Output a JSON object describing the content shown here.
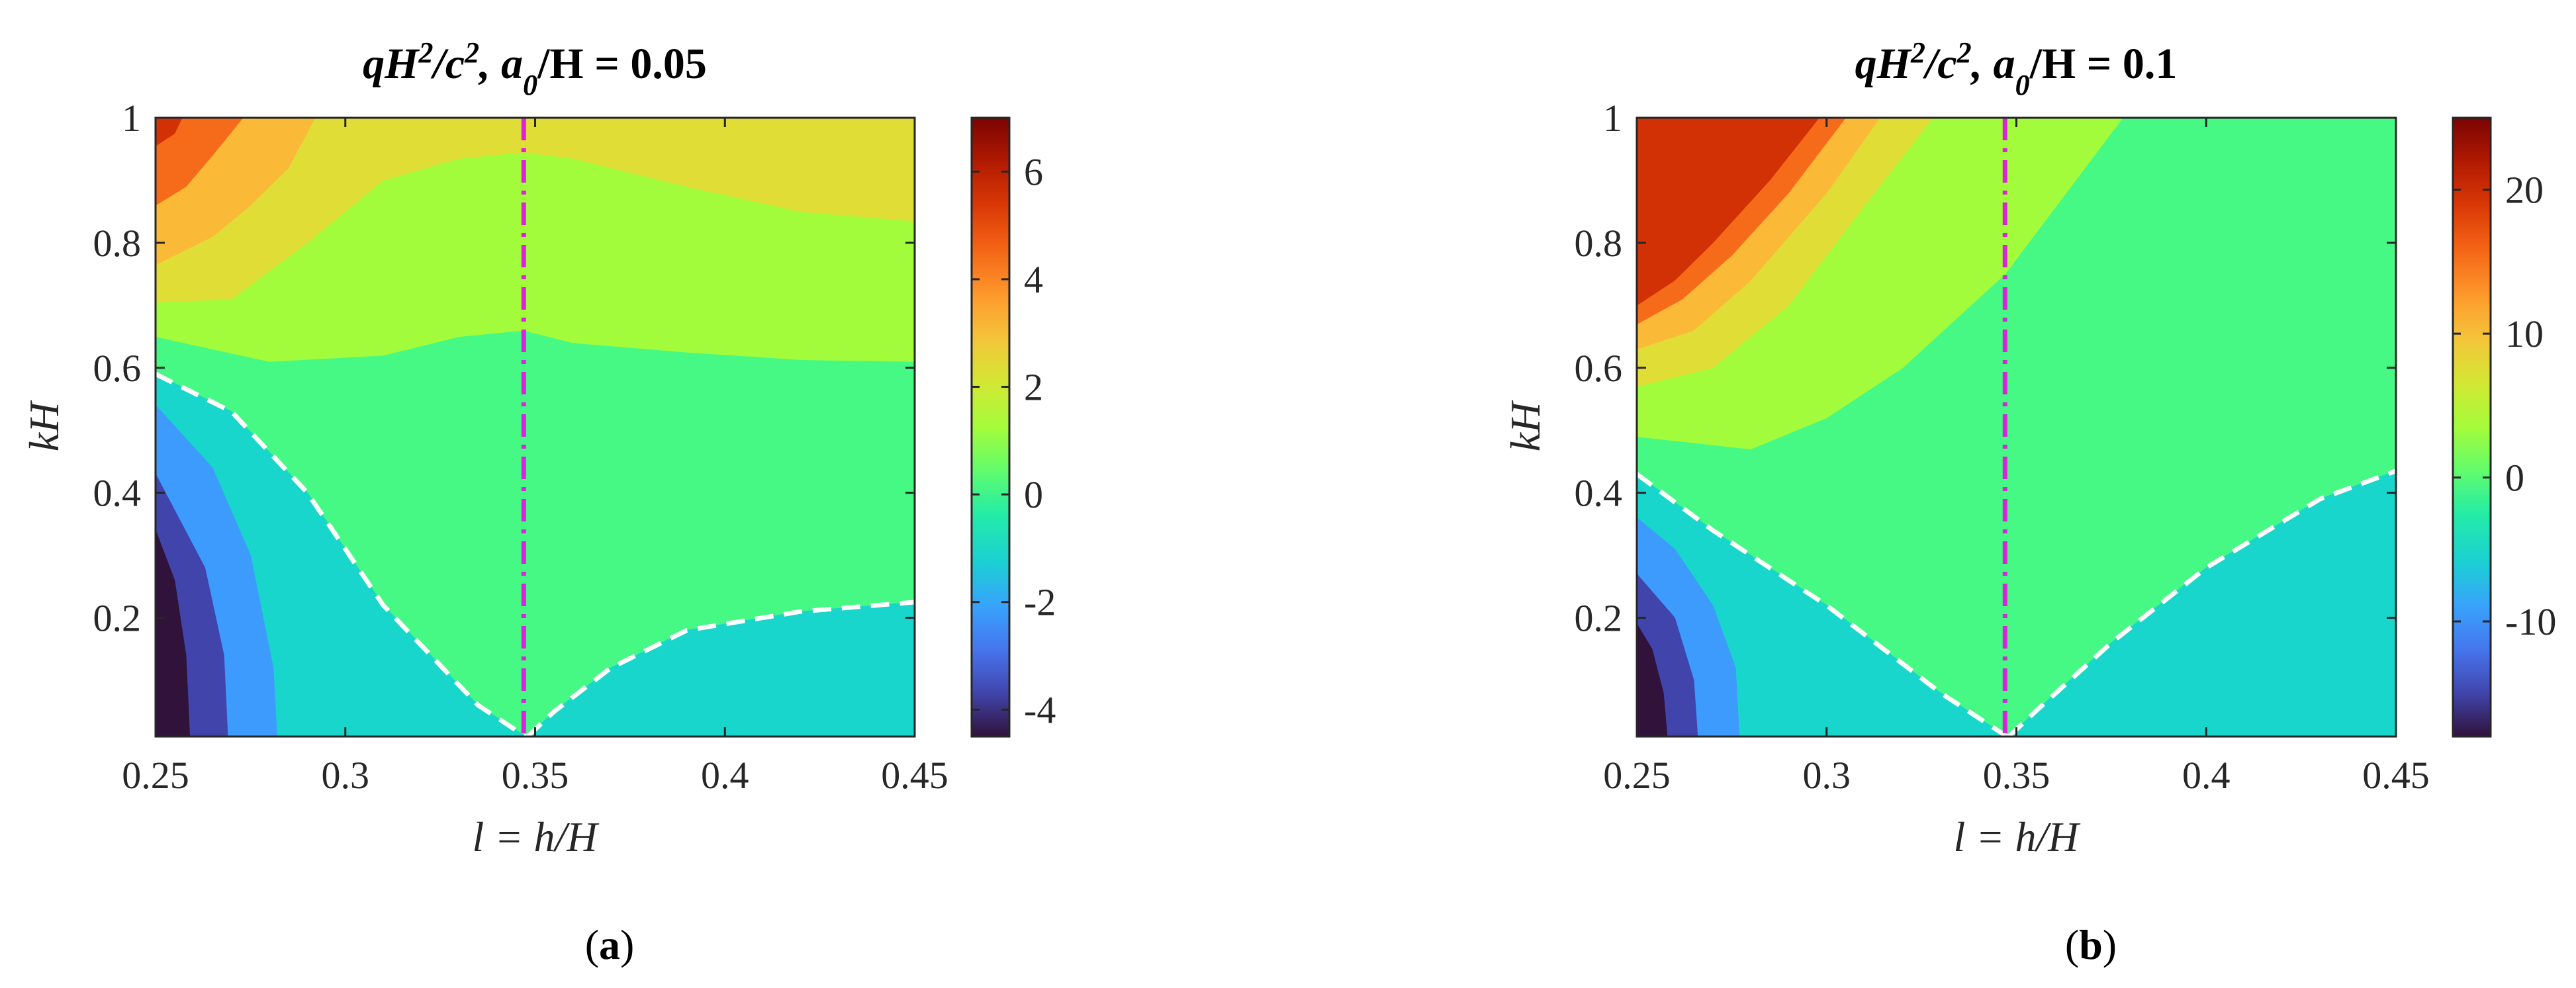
{
  "figure": {
    "panels": [
      {
        "title_parts": [
          "qH",
          "2",
          "/c",
          "2",
          ", a",
          "0",
          "/H = 0.05"
        ],
        "caption_letter": "a",
        "xlabel": "l = h/H",
        "ylabel": "kH",
        "xticks": [
          "0.25",
          "0.3",
          "0.35",
          "0.4",
          "0.45"
        ],
        "yticks": [
          "0.2",
          "0.4",
          "0.6",
          "0.8",
          "1"
        ],
        "colorbar_ticks": [
          "-4",
          "-2",
          "0",
          "2",
          "4",
          "6"
        ]
      },
      {
        "title_parts": [
          "qH",
          "2",
          "/c",
          "2",
          ", a",
          "0",
          "/H = 0.1"
        ],
        "caption_letter": "b",
        "xlabel": "l = h/H",
        "ylabel": "kH",
        "xticks": [
          "0.25",
          "0.3",
          "0.35",
          "0.4",
          "0.45"
        ],
        "yticks": [
          "0.2",
          "0.4",
          "0.6",
          "0.8",
          "1"
        ],
        "colorbar_ticks": [
          "-10",
          "0",
          "10",
          "20"
        ]
      }
    ]
  },
  "chart_data": [
    {
      "type": "contour",
      "title": "qH^2/c^2, a_0/H = 0.05",
      "xlabel": "l = h/H",
      "ylabel": "kH",
      "xlim": [
        0.25,
        0.45
      ],
      "ylim": [
        0.01,
        1.0
      ],
      "colormap": "turbo",
      "colorbar_range": [
        -4.5,
        7.0
      ],
      "colorbar_ticks": [
        -4,
        -2,
        0,
        2,
        4,
        6
      ],
      "vertical_line": {
        "x": 0.347,
        "color": "#e020e0",
        "style": "dash-dot"
      },
      "zero_contour_dashed": {
        "color": "#ffffff",
        "style": "dashed"
      },
      "levels": [
        {
          "value": -4.0,
          "color": "#30123b"
        },
        {
          "value": -3.0,
          "color": "#4145ab"
        },
        {
          "value": -2.0,
          "color": "#3e9bfe"
        },
        {
          "value": -1.0,
          "color": "#18d6cb"
        },
        {
          "value": 0.0,
          "color": "#46f884"
        },
        {
          "value": 1.0,
          "color": "#a2fc3c"
        },
        {
          "value": 2.0,
          "color": "#e1dd37"
        },
        {
          "value": 3.0,
          "color": "#fbb938"
        },
        {
          "value": 4.0,
          "color": "#f66b19"
        },
        {
          "value": 5.0,
          "color": "#d23105"
        },
        {
          "value": 6.0,
          "color": "#7a0403"
        }
      ],
      "regions": [
        {
          "level": 1.0,
          "points": [
            [
              0.25,
              1.0
            ],
            [
              0.45,
              1.0
            ],
            [
              0.45,
              0.61
            ],
            [
              0.42,
              0.613
            ],
            [
              0.39,
              0.625
            ],
            [
              0.36,
              0.64
            ],
            [
              0.347,
              0.66
            ],
            [
              0.33,
              0.65
            ],
            [
              0.31,
              0.62
            ],
            [
              0.28,
              0.61
            ],
            [
              0.25,
              0.65
            ]
          ]
        },
        {
          "level": 2.0,
          "points": [
            [
              0.25,
              1.0
            ],
            [
              0.45,
              1.0
            ],
            [
              0.45,
              0.835
            ],
            [
              0.42,
              0.85
            ],
            [
              0.39,
              0.89
            ],
            [
              0.36,
              0.935
            ],
            [
              0.347,
              0.945
            ],
            [
              0.33,
              0.935
            ],
            [
              0.31,
              0.9
            ],
            [
              0.29,
              0.8
            ],
            [
              0.27,
              0.71
            ],
            [
              0.25,
              0.705
            ]
          ]
        },
        {
          "level": 3.0,
          "points": [
            [
              0.25,
              1.0
            ],
            [
              0.292,
              1.0
            ],
            [
              0.285,
              0.92
            ],
            [
              0.275,
              0.86
            ],
            [
              0.265,
              0.81
            ],
            [
              0.25,
              0.765
            ]
          ]
        },
        {
          "level": 4.0,
          "points": [
            [
              0.25,
              1.0
            ],
            [
              0.273,
              1.0
            ],
            [
              0.265,
              0.94
            ],
            [
              0.258,
              0.89
            ],
            [
              0.25,
              0.86
            ]
          ]
        },
        {
          "level": 5.0,
          "points": [
            [
              0.25,
              1.0
            ],
            [
              0.257,
              1.0
            ],
            [
              0.255,
              0.975
            ],
            [
              0.25,
              0.955
            ]
          ]
        },
        {
          "level": -1.0,
          "points": [
            [
              0.25,
              0.01
            ],
            [
              0.3475,
              0.01
            ],
            [
              0.335,
              0.06
            ],
            [
              0.31,
              0.22
            ],
            [
              0.29,
              0.4
            ],
            [
              0.27,
              0.53
            ],
            [
              0.25,
              0.59
            ]
          ]
        },
        {
          "level": -1.0,
          "points": [
            [
              0.348,
              0.01
            ],
            [
              0.45,
              0.01
            ],
            [
              0.45,
              0.225
            ],
            [
              0.42,
              0.21
            ],
            [
              0.39,
              0.18
            ],
            [
              0.37,
              0.12
            ],
            [
              0.355,
              0.05
            ]
          ]
        },
        {
          "level": -2.0,
          "points": [
            [
              0.25,
              0.01
            ],
            [
              0.282,
              0.01
            ],
            [
              0.281,
              0.12
            ],
            [
              0.275,
              0.3
            ],
            [
              0.265,
              0.44
            ],
            [
              0.25,
              0.54
            ]
          ]
        },
        {
          "level": -3.0,
          "points": [
            [
              0.25,
              0.01
            ],
            [
              0.269,
              0.01
            ],
            [
              0.268,
              0.14
            ],
            [
              0.263,
              0.28
            ],
            [
              0.25,
              0.43
            ]
          ]
        },
        {
          "level": -4.0,
          "points": [
            [
              0.25,
              0.01
            ],
            [
              0.259,
              0.01
            ],
            [
              0.258,
              0.14
            ],
            [
              0.255,
              0.26
            ],
            [
              0.25,
              0.34
            ]
          ]
        }
      ],
      "dashed_curves": [
        [
          [
            0.25,
            0.59
          ],
          [
            0.27,
            0.53
          ],
          [
            0.29,
            0.4
          ],
          [
            0.31,
            0.22
          ],
          [
            0.335,
            0.06
          ],
          [
            0.3475,
            0.01
          ]
        ],
        [
          [
            0.348,
            0.01
          ],
          [
            0.355,
            0.05
          ],
          [
            0.37,
            0.12
          ],
          [
            0.39,
            0.18
          ],
          [
            0.42,
            0.21
          ],
          [
            0.45,
            0.225
          ]
        ]
      ]
    },
    {
      "type": "contour",
      "title": "qH^2/c^2, a_0/H = 0.1",
      "xlabel": "l = h/H",
      "ylabel": "kH",
      "xlim": [
        0.25,
        0.45
      ],
      "ylim": [
        0.01,
        1.0
      ],
      "colormap": "turbo",
      "colorbar_range": [
        -18,
        25
      ],
      "colorbar_ticks": [
        -10,
        0,
        10,
        20
      ],
      "vertical_line": {
        "x": 0.347,
        "color": "#e020e0",
        "style": "dash-dot"
      },
      "zero_contour_dashed": {
        "color": "#ffffff",
        "style": "dashed"
      },
      "levels": [
        {
          "value": -15,
          "color": "#30123b"
        },
        {
          "value": -10,
          "color": "#4145ab"
        },
        {
          "value": -5,
          "color": "#3e9bfe"
        },
        {
          "value": -1,
          "color": "#18d6cb"
        },
        {
          "value": 0,
          "color": "#46f884"
        },
        {
          "value": 5,
          "color": "#a2fc3c"
        },
        {
          "value": 10,
          "color": "#e1dd37"
        },
        {
          "value": 15,
          "color": "#fbb938"
        },
        {
          "value": 18,
          "color": "#f66b19"
        },
        {
          "value": 21,
          "color": "#d23105"
        },
        {
          "value": 24,
          "color": "#7a0403"
        }
      ],
      "regions": [
        {
          "level": 5,
          "points": [
            [
              0.25,
              1.0
            ],
            [
              0.378,
              1.0
            ],
            [
              0.347,
              0.75
            ],
            [
              0.32,
              0.6
            ],
            [
              0.3,
              0.52
            ],
            [
              0.28,
              0.47
            ],
            [
              0.25,
              0.49
            ]
          ]
        },
        {
          "level": 10,
          "points": [
            [
              0.25,
              1.0
            ],
            [
              0.328,
              1.0
            ],
            [
              0.31,
              0.86
            ],
            [
              0.29,
              0.7
            ],
            [
              0.27,
              0.6
            ],
            [
              0.25,
              0.57
            ]
          ]
        },
        {
          "level": 15,
          "points": [
            [
              0.25,
              1.0
            ],
            [
              0.314,
              1.0
            ],
            [
              0.3,
              0.88
            ],
            [
              0.28,
              0.74
            ],
            [
              0.265,
              0.66
            ],
            [
              0.25,
              0.63
            ]
          ]
        },
        {
          "level": 18,
          "points": [
            [
              0.25,
              1.0
            ],
            [
              0.305,
              1.0
            ],
            [
              0.29,
              0.88
            ],
            [
              0.275,
              0.78
            ],
            [
              0.262,
              0.71
            ],
            [
              0.25,
              0.67
            ]
          ]
        },
        {
          "level": 21,
          "points": [
            [
              0.25,
              1.0
            ],
            [
              0.298,
              1.0
            ],
            [
              0.285,
              0.9
            ],
            [
              0.27,
              0.8
            ],
            [
              0.26,
              0.74
            ],
            [
              0.25,
              0.7
            ]
          ]
        },
        {
          "level": -1,
          "points": [
            [
              0.25,
              0.01
            ],
            [
              0.3475,
              0.01
            ],
            [
              0.33,
              0.08
            ],
            [
              0.3,
              0.22
            ],
            [
              0.27,
              0.34
            ],
            [
              0.25,
              0.43
            ]
          ]
        },
        {
          "level": -1,
          "points": [
            [
              0.348,
              0.01
            ],
            [
              0.45,
              0.01
            ],
            [
              0.45,
              0.435
            ],
            [
              0.43,
              0.39
            ],
            [
              0.4,
              0.28
            ],
            [
              0.375,
              0.16
            ],
            [
              0.355,
              0.05
            ]
          ]
        },
        {
          "level": -5,
          "points": [
            [
              0.25,
              0.01
            ],
            [
              0.277,
              0.01
            ],
            [
              0.276,
              0.12
            ],
            [
              0.27,
              0.22
            ],
            [
              0.26,
              0.31
            ],
            [
              0.25,
              0.36
            ]
          ]
        },
        {
          "level": -10,
          "points": [
            [
              0.25,
              0.01
            ],
            [
              0.266,
              0.01
            ],
            [
              0.265,
              0.1
            ],
            [
              0.26,
              0.2
            ],
            [
              0.25,
              0.27
            ]
          ]
        },
        {
          "level": -15,
          "points": [
            [
              0.25,
              0.01
            ],
            [
              0.258,
              0.01
            ],
            [
              0.257,
              0.08
            ],
            [
              0.254,
              0.15
            ],
            [
              0.25,
              0.19
            ]
          ]
        }
      ],
      "dashed_curves": [
        [
          [
            0.25,
            0.43
          ],
          [
            0.27,
            0.34
          ],
          [
            0.3,
            0.22
          ],
          [
            0.33,
            0.08
          ],
          [
            0.3475,
            0.01
          ]
        ],
        [
          [
            0.348,
            0.01
          ],
          [
            0.355,
            0.05
          ],
          [
            0.375,
            0.16
          ],
          [
            0.4,
            0.28
          ],
          [
            0.43,
            0.39
          ],
          [
            0.45,
            0.435
          ]
        ]
      ]
    }
  ]
}
